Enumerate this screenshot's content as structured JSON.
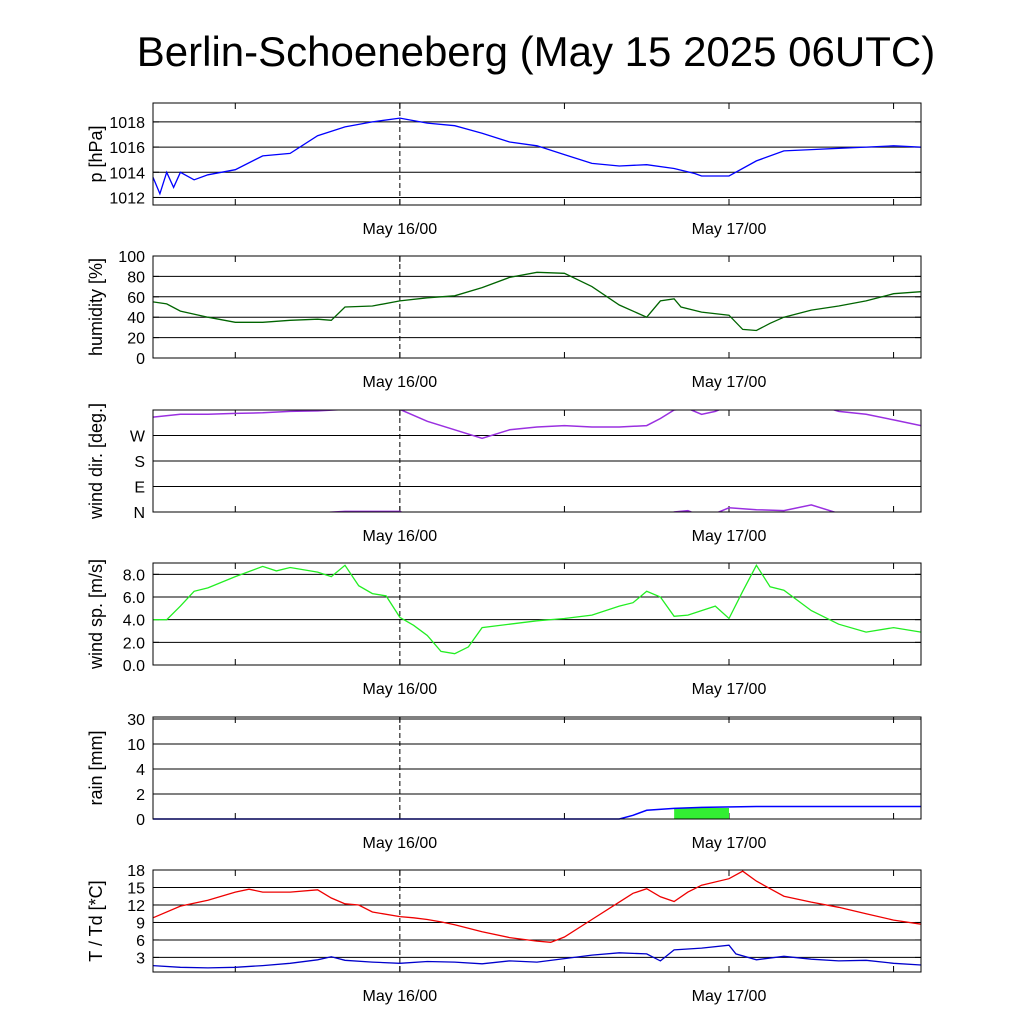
{
  "title": "Berlin-Schoeneberg (May 15 2025 06UTC)",
  "x_tick_labels": [
    "May 16/00",
    "May 17/00"
  ],
  "chart_data": [
    {
      "type": "line",
      "id": "pressure",
      "ylabel": "p [hPa]",
      "ylim": [
        1011.4,
        1019.5
      ],
      "yticks": [
        1012,
        1014,
        1016,
        1018
      ],
      "ytick_labels": [
        "1012",
        "1014",
        "1016",
        "1018"
      ],
      "color": "#0000ff",
      "x_hours": [
        0,
        0.5,
        1,
        1.5,
        2,
        3,
        4,
        6,
        8,
        10,
        12,
        14,
        16,
        18,
        19,
        20,
        22,
        24,
        26,
        28,
        30,
        32,
        34,
        36,
        38,
        39.5,
        40,
        42,
        44,
        46,
        48,
        50,
        52,
        54,
        56
      ],
      "values": [
        1013.6,
        1012.3,
        1014.0,
        1012.8,
        1014.0,
        1013.4,
        1013.8,
        1014.2,
        1015.3,
        1015.5,
        1016.9,
        1017.6,
        1018.0,
        1018.3,
        1018.1,
        1017.9,
        1017.7,
        1017.1,
        1016.4,
        1016.1,
        1015.4,
        1014.7,
        1014.5,
        1014.6,
        1014.3,
        1013.9,
        1013.7,
        1013.7,
        1014.9,
        1015.7,
        1015.8,
        1015.9,
        1016.0,
        1016.1,
        1016.0
      ]
    },
    {
      "type": "line",
      "id": "humidity",
      "ylabel": "humidity [%]",
      "ylim": [
        0,
        100
      ],
      "yticks": [
        0,
        20,
        40,
        60,
        80,
        100
      ],
      "ytick_labels": [
        "0",
        "20",
        "40",
        "60",
        "80",
        "100"
      ],
      "color": "#006400",
      "x_hours": [
        0,
        1,
        2,
        4,
        6,
        8,
        10,
        12,
        13,
        14,
        16,
        18,
        20,
        22,
        24,
        26,
        28,
        30,
        32,
        34,
        36,
        37,
        38,
        38.5,
        40,
        42,
        43,
        44,
        45,
        46,
        48,
        50,
        52,
        54,
        56
      ],
      "values": [
        55,
        53,
        46,
        40,
        35,
        35,
        37,
        38,
        37,
        50,
        51,
        56,
        59,
        61,
        69,
        79,
        84,
        83,
        70,
        52,
        40,
        56,
        58,
        50,
        45,
        42,
        28,
        27,
        34,
        40,
        47,
        51,
        56,
        63,
        65
      ]
    },
    {
      "type": "line",
      "id": "wind-direction",
      "ylabel": "wind dir. [deg.]",
      "ylim": [
        0,
        360
      ],
      "yticks": [
        0,
        90,
        180,
        270
      ],
      "ytick_labels": [
        "N",
        "E",
        "S",
        "W"
      ],
      "color": "#9a30e0",
      "x_hours": [
        0,
        2,
        4,
        6,
        8,
        10,
        12,
        14,
        16,
        18,
        20,
        22,
        24,
        26,
        28,
        30,
        32,
        34,
        36,
        37,
        38,
        39,
        40,
        41,
        42,
        44,
        46,
        48,
        50,
        52,
        54,
        56
      ],
      "values": [
        335,
        345,
        345,
        348,
        350,
        355,
        357,
        362,
        362,
        362,
        320,
        290,
        260,
        290,
        300,
        305,
        300,
        300,
        305,
        330,
        360,
        365,
        345,
        355,
        375,
        368,
        365,
        385,
        355,
        345,
        325,
        305
      ]
    },
    {
      "type": "line",
      "id": "wind-speed",
      "ylabel": "wind sp. [m/s]",
      "ylim": [
        0,
        9.0
      ],
      "yticks": [
        0,
        2,
        4,
        6,
        8
      ],
      "ytick_labels": [
        "0.0",
        "2.0",
        "4.0",
        "6.0",
        "8.0"
      ],
      "color": "#22ee22",
      "x_hours": [
        0,
        1,
        2,
        3,
        4,
        6,
        8,
        9,
        10,
        12,
        13,
        14,
        15,
        16,
        17,
        18,
        19,
        20,
        21,
        22,
        23,
        24,
        26,
        28,
        30,
        32,
        34,
        35,
        36,
        37,
        38,
        39,
        40,
        41,
        42,
        43,
        44,
        45,
        46,
        48,
        50,
        52,
        54,
        56
      ],
      "values": [
        4.0,
        4.0,
        5.2,
        6.5,
        6.8,
        7.8,
        8.7,
        8.3,
        8.6,
        8.2,
        7.8,
        8.8,
        7.0,
        6.3,
        6.1,
        4.2,
        3.5,
        2.6,
        1.2,
        1.0,
        1.6,
        3.3,
        3.6,
        3.9,
        4.1,
        4.4,
        5.2,
        5.5,
        6.5,
        6.0,
        4.3,
        4.4,
        4.8,
        5.2,
        4.1,
        6.5,
        8.8,
        6.9,
        6.6,
        4.8,
        3.6,
        2.9,
        3.3,
        2.9
      ]
    },
    {
      "type": "area",
      "id": "rain",
      "ylabel": "rain [mm]",
      "yticks": [
        0,
        2,
        4,
        10,
        30
      ],
      "ytick_labels": [
        "0",
        "2",
        "4",
        "10",
        "30"
      ],
      "accumulated_color": "#0000ff",
      "bar_color": "#33ee33",
      "accumulated_x_hours": [
        0,
        33,
        34,
        35,
        36,
        38,
        40,
        44,
        56
      ],
      "accumulated_values": [
        0,
        0,
        0.0,
        0.3,
        0.7,
        0.85,
        0.93,
        1.0,
        1.0
      ],
      "bars": [
        {
          "start_hour": 38,
          "end_hour": 42,
          "value": 0.88
        }
      ]
    },
    {
      "type": "line",
      "id": "temperature",
      "ylabel": "T / Td [*C]",
      "ylim": [
        0.5,
        18
      ],
      "yticks": [
        3,
        6,
        9,
        12,
        15,
        18
      ],
      "ytick_labels": [
        "3",
        "6",
        "9",
        "12",
        "15",
        "18"
      ],
      "series": [
        {
          "id": "T",
          "color": "#ee0000",
          "x_hours": [
            0,
            2,
            4,
            6,
            7,
            8,
            10,
            12,
            13,
            14,
            15,
            16,
            18,
            19,
            20,
            21,
            22,
            24,
            26,
            28,
            29,
            30,
            32,
            34,
            35,
            36,
            37,
            38,
            39,
            40,
            42,
            43,
            44,
            45,
            46,
            48,
            50,
            52,
            54,
            56
          ],
          "values": [
            9.8,
            11.8,
            12.8,
            14.2,
            14.7,
            14.2,
            14.2,
            14.6,
            13.2,
            12.2,
            12.0,
            10.8,
            10.0,
            9.8,
            9.5,
            9.1,
            8.6,
            7.4,
            6.4,
            5.8,
            5.6,
            6.5,
            9.5,
            12.5,
            14.0,
            14.8,
            13.4,
            12.6,
            14.2,
            15.4,
            16.5,
            17.8,
            16.1,
            14.8,
            13.5,
            12.5,
            11.6,
            10.5,
            9.4,
            8.7
          ]
        },
        {
          "id": "Td",
          "color": "#0000cc",
          "x_hours": [
            0,
            2,
            4,
            6,
            8,
            10,
            12,
            13,
            14,
            16,
            18,
            20,
            22,
            24,
            26,
            28,
            30,
            32,
            34,
            36,
            37,
            38,
            40,
            42,
            42.5,
            44,
            46,
            48,
            50,
            52,
            54,
            56
          ],
          "values": [
            1.6,
            1.3,
            1.2,
            1.3,
            1.6,
            2.0,
            2.6,
            3.1,
            2.5,
            2.2,
            2.0,
            2.3,
            2.2,
            1.9,
            2.4,
            2.2,
            2.8,
            3.4,
            3.8,
            3.6,
            2.4,
            4.3,
            4.6,
            5.1,
            3.6,
            2.6,
            3.2,
            2.7,
            2.4,
            2.5,
            2.0,
            1.7
          ]
        }
      ]
    }
  ]
}
